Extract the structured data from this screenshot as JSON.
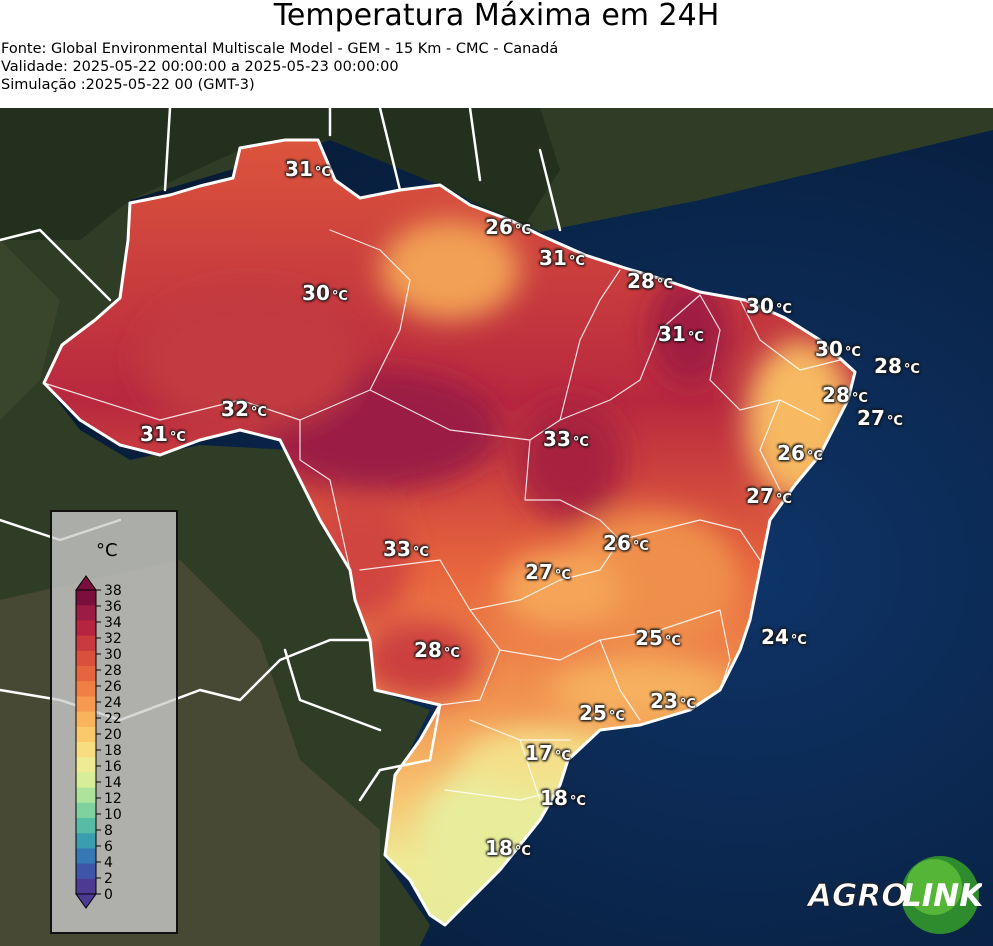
{
  "header": {
    "title": "Temperatura Máxima em 24H",
    "source": "Fonte: Global Environmental Multiscale Model - GEM - 15 Km - CMC - Canadá",
    "validity": "Validade: 2025-05-22 00:00:00 a 2025-05-23 00:00:00",
    "simulation": "Simulação :2025-05-22 00 (GMT-3)"
  },
  "unit": "°C",
  "labels": [
    {
      "value": "31",
      "unit": "°C"
    },
    {
      "value": "26",
      "unit": "°C"
    },
    {
      "value": "31",
      "unit": "°C"
    },
    {
      "value": "28",
      "unit": "°C"
    },
    {
      "value": "30",
      "unit": "°C"
    },
    {
      "value": "30",
      "unit": "°C"
    },
    {
      "value": "31",
      "unit": "°C"
    },
    {
      "value": "30",
      "unit": "°C"
    },
    {
      "value": "28",
      "unit": "°C"
    },
    {
      "value": "28",
      "unit": "°C"
    },
    {
      "value": "27",
      "unit": "°C"
    },
    {
      "value": "32",
      "unit": "°C"
    },
    {
      "value": "31",
      "unit": "°C"
    },
    {
      "value": "33",
      "unit": "°C"
    },
    {
      "value": "26",
      "unit": "°C"
    },
    {
      "value": "27",
      "unit": "°C"
    },
    {
      "value": "33",
      "unit": "°C"
    },
    {
      "value": "26",
      "unit": "°C"
    },
    {
      "value": "27",
      "unit": "°C"
    },
    {
      "value": "25",
      "unit": "°C"
    },
    {
      "value": "24",
      "unit": "°C"
    },
    {
      "value": "28",
      "unit": "°C"
    },
    {
      "value": "23",
      "unit": "°C"
    },
    {
      "value": "25",
      "unit": "°C"
    },
    {
      "value": "17",
      "unit": "°C"
    },
    {
      "value": "18",
      "unit": "°C"
    },
    {
      "value": "18",
      "unit": "°C"
    }
  ],
  "legend": {
    "unit": "°C",
    "ticks": [
      "38",
      "36",
      "34",
      "32",
      "30",
      "28",
      "26",
      "24",
      "22",
      "20",
      "18",
      "16",
      "14",
      "12",
      "10",
      "8",
      "6",
      "4",
      "2",
      "0"
    ],
    "colors": [
      "#7a0f3d",
      "#9b1c44",
      "#b5253f",
      "#c93a3f",
      "#d9503c",
      "#e5663e",
      "#ef7f44",
      "#f59a50",
      "#f8b35c",
      "#fac96c",
      "#f8dc80",
      "#eeeb94",
      "#d6ed9a",
      "#aee39b",
      "#7fd29e",
      "#56bca6",
      "#3a9db0",
      "#3578b3",
      "#3f56a8",
      "#4d3a93"
    ]
  },
  "logo": {
    "part1": "AGRO",
    "part2": "LINK"
  },
  "colors": {
    "ocean": "#0b2850",
    "land": "#2c3a26",
    "hot": "#a8203f",
    "warm": "#e8663f",
    "mild": "#f7a25a",
    "cool": "#e8ec9a"
  }
}
